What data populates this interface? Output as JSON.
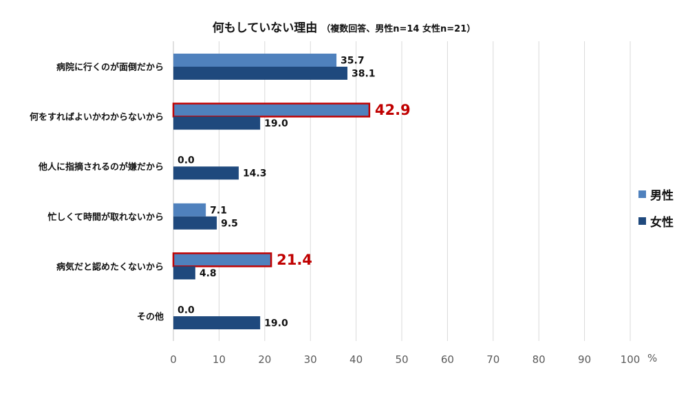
{
  "chart_data": {
    "type": "bar",
    "orientation": "horizontal",
    "title": "何もしていない理由",
    "subtitle": "（複数回答、男性n=14 女性n=21）",
    "categories": [
      "病院に行くのが面倒だから",
      "何をすればよいかわからないから",
      "他人に指摘されるのが嫌だから",
      "忙しくて時間が取れないから",
      "病気だと認めたくないから",
      "その他"
    ],
    "series": [
      {
        "name": "男性",
        "values": [
          35.7,
          42.9,
          0.0,
          7.1,
          21.4,
          0.0
        ],
        "color": "#4f81bd"
      },
      {
        "name": "女性",
        "values": [
          38.1,
          19.0,
          14.3,
          9.5,
          4.8,
          19.0
        ],
        "color": "#1f497d"
      }
    ],
    "value_labels": {
      "男性": [
        "35.7",
        "42.9",
        "0.0",
        "7.1",
        "21.4",
        "0.0"
      ],
      "女性": [
        "38.1",
        "19.0",
        "14.3",
        "9.5",
        "4.8",
        "19.0"
      ]
    },
    "highlighted": [
      {
        "series": "男性",
        "category": "何をすればよいかわからないから"
      },
      {
        "series": "男性",
        "category": "病気だと認めたくないから"
      }
    ],
    "highlight_color": "#c00000",
    "x_ticks": [
      "0",
      "10",
      "20",
      "30",
      "40",
      "50",
      "60",
      "70",
      "80",
      "90",
      "100"
    ],
    "xlim": [
      0,
      100
    ],
    "x_unit": "%",
    "grid": true,
    "legend_position": "right"
  }
}
